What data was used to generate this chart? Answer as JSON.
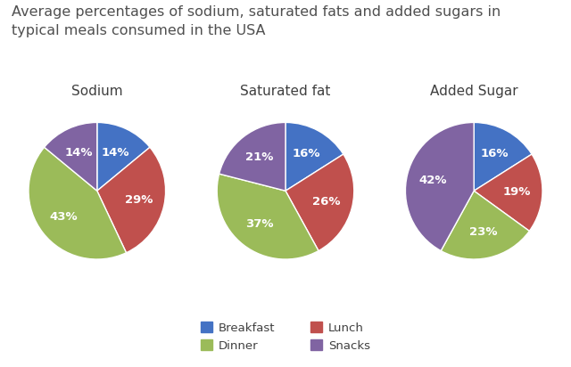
{
  "title": "Average percentages of sodium, saturated fats and added sugars in\ntypical meals consumed in the USA",
  "charts": [
    {
      "title": "Sodium",
      "values": [
        14,
        29,
        43,
        14
      ],
      "startangle": 90
    },
    {
      "title": "Saturated fat",
      "values": [
        16,
        26,
        37,
        21
      ],
      "startangle": 90
    },
    {
      "title": "Added Sugar",
      "values": [
        16,
        19,
        23,
        42
      ],
      "startangle": 90
    }
  ],
  "legend_labels": [
    "Breakfast",
    "Lunch",
    "Dinner",
    "Snacks"
  ],
  "colors": [
    "#4472C4",
    "#C0504D",
    "#9BBB59",
    "#8064A2"
  ],
  "background_color": "#FFFFFF",
  "title_fontsize": 11.5
}
